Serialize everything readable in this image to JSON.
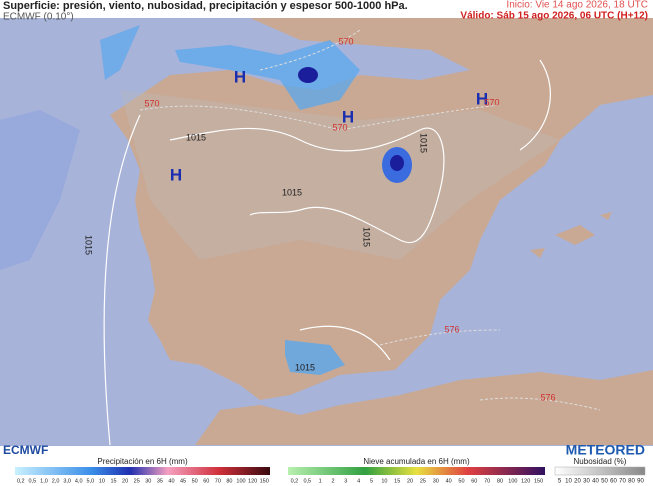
{
  "header": {
    "title": "Superficie: presión, viento, nubosidad, precipitación y espesor 500-1000 hPa.",
    "model": "ECMWF (0.10°)",
    "init": "Inicio: Vie 14 ago 2026, 18 UTC",
    "valid": "Válido: Sáb 15 ago 2026, 06 UTC (H+12)"
  },
  "map": {
    "pressure_centers": [
      "H",
      "H",
      "H",
      "H"
    ],
    "isobar_labels": [
      "1015",
      "1015",
      "1015",
      "1015",
      "1015",
      "1015"
    ],
    "thickness_labels": [
      "570",
      "570",
      "570",
      "570",
      "576",
      "576"
    ]
  },
  "logos": {
    "left": "ECMWF",
    "right": "METEORED"
  },
  "legends": [
    {
      "title": "Precipitación en 6H (mm)",
      "ticks": [
        "0,2",
        "0,5",
        "1,0",
        "2,0",
        "3,0",
        "4,0",
        "5,0",
        "10",
        "15",
        "20",
        "25",
        "30",
        "35",
        "40",
        "45",
        "50",
        "60",
        "70",
        "80",
        "100",
        "120",
        "150"
      ]
    },
    {
      "title": "Nieve acumulada en 6H (mm)",
      "ticks": [
        "0,2",
        "0,5",
        "1",
        "2",
        "3",
        "4",
        "5",
        "10",
        "15",
        "20",
        "25",
        "30",
        "40",
        "50",
        "60",
        "70",
        "80",
        "100",
        "120",
        "150"
      ]
    },
    {
      "title": "Nubosidad (%)",
      "ticks": [
        "5",
        "10",
        "20",
        "30",
        "40",
        "50",
        "60",
        "70",
        "80",
        "90"
      ]
    }
  ]
}
